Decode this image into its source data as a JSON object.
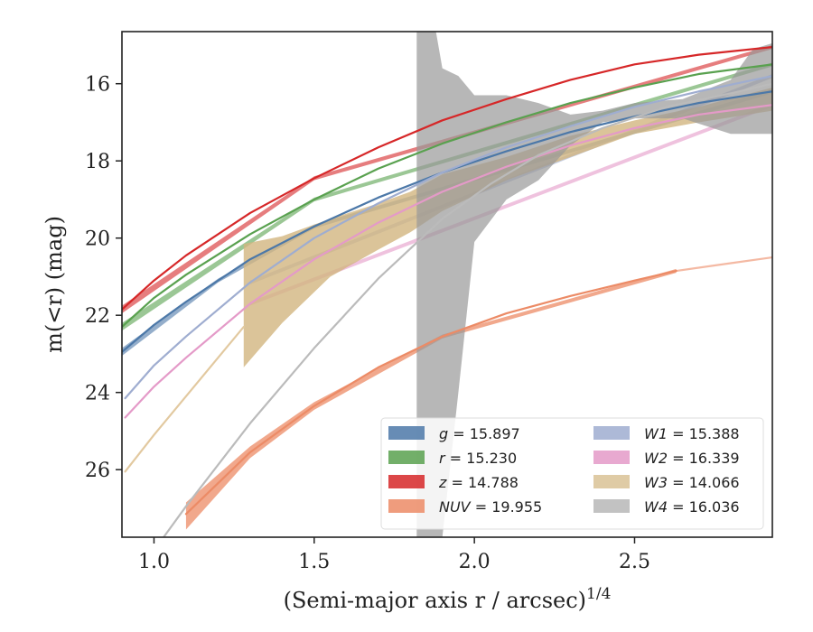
{
  "chart_data": {
    "type": "line",
    "xlabel": "(Semi-major axis r / arcsec)",
    "xlabel_var": "r",
    "xlabel_sup": "1/4",
    "ylabel": "m(<r) (mag)",
    "xlim": [
      0.9,
      2.93
    ],
    "ylim": [
      27.75,
      14.65
    ],
    "y_inverted": true,
    "xticks": [
      1.0,
      1.5,
      2.0,
      2.5
    ],
    "xtick_labels": [
      "1.0",
      "1.5",
      "2.0",
      "2.5"
    ],
    "yticks": [
      16,
      18,
      20,
      22,
      24,
      26
    ],
    "ytick_labels": [
      "16",
      "18",
      "20",
      "22",
      "24",
      "26"
    ],
    "grid": false,
    "legend": {
      "placement": "lower-right",
      "columns": 2
    },
    "series": [
      {
        "name": "g = 15.897",
        "var": "g",
        "value": "15.897",
        "color": "#4c78a8",
        "line": [
          [
            0.9,
            22.95
          ],
          [
            1.0,
            22.25
          ],
          [
            1.1,
            21.65
          ],
          [
            1.3,
            20.55
          ],
          [
            1.5,
            19.7
          ],
          [
            1.7,
            18.95
          ],
          [
            1.9,
            18.3
          ],
          [
            2.1,
            17.75
          ],
          [
            2.3,
            17.25
          ],
          [
            2.5,
            16.85
          ],
          [
            2.7,
            16.5
          ],
          [
            2.93,
            16.2
          ]
        ],
        "band": [
          [
            0.9,
            22.85,
            23.05
          ],
          [
            1.2,
            21.05,
            21.15
          ],
          [
            1.5,
            19.65,
            19.75
          ],
          [
            2.93,
            16.15,
            16.25
          ]
        ],
        "band_opacity": 0.6
      },
      {
        "name": "r = 15.230",
        "var": "r",
        "value": "15.230",
        "color": "#59a14f",
        "line": [
          [
            0.9,
            22.3
          ],
          [
            1.0,
            21.55
          ],
          [
            1.1,
            20.95
          ],
          [
            1.3,
            19.9
          ],
          [
            1.5,
            19.0
          ],
          [
            1.7,
            18.2
          ],
          [
            1.9,
            17.55
          ],
          [
            2.1,
            17.0
          ],
          [
            2.3,
            16.5
          ],
          [
            2.5,
            16.1
          ],
          [
            2.7,
            15.75
          ],
          [
            2.93,
            15.5
          ]
        ],
        "band": [
          [
            0.9,
            22.2,
            22.4
          ],
          [
            1.5,
            18.95,
            19.05
          ],
          [
            2.93,
            15.45,
            15.55
          ]
        ],
        "band_opacity": 0.6
      },
      {
        "name": "z = 14.788",
        "var": "z",
        "value": "14.788",
        "color": "#d62728",
        "line": [
          [
            0.9,
            21.85
          ],
          [
            1.0,
            21.1
          ],
          [
            1.1,
            20.45
          ],
          [
            1.3,
            19.35
          ],
          [
            1.5,
            18.45
          ],
          [
            1.7,
            17.65
          ],
          [
            1.9,
            16.95
          ],
          [
            2.1,
            16.4
          ],
          [
            2.3,
            15.9
          ],
          [
            2.5,
            15.5
          ],
          [
            2.7,
            15.25
          ],
          [
            2.93,
            15.05
          ]
        ],
        "band": [
          [
            0.9,
            21.75,
            21.95
          ],
          [
            1.5,
            18.4,
            18.5
          ],
          [
            2.93,
            15.0,
            15.1
          ]
        ],
        "band_opacity": 0.6
      },
      {
        "name": "NUV = 19.955",
        "var": "NUV",
        "value": "19.955",
        "color": "#ec8b66",
        "line": [
          [
            1.1,
            27.15
          ],
          [
            1.3,
            25.55
          ],
          [
            1.5,
            24.35
          ],
          [
            1.7,
            23.35
          ],
          [
            1.9,
            22.55
          ],
          [
            2.1,
            21.95
          ],
          [
            2.3,
            21.5
          ],
          [
            2.5,
            21.1
          ],
          [
            2.63,
            20.85
          ]
        ],
        "line_ext": [
          [
            2.63,
            20.85
          ],
          [
            2.8,
            20.65
          ],
          [
            2.93,
            20.5
          ]
        ],
        "band": [
          [
            1.1,
            26.85,
            27.55
          ],
          [
            1.3,
            25.4,
            25.7
          ],
          [
            1.5,
            24.25,
            24.45
          ],
          [
            1.9,
            22.5,
            22.6
          ],
          [
            2.63,
            20.8,
            20.9
          ]
        ],
        "band_opacity": 0.75
      },
      {
        "name": "W1 = 15.388",
        "var": "W1",
        "value": "15.388",
        "color": "#9fadd0",
        "line": [
          [
            0.91,
            24.15
          ],
          [
            1.0,
            23.3
          ],
          [
            1.1,
            22.55
          ],
          [
            1.3,
            21.15
          ],
          [
            1.5,
            20.0
          ],
          [
            1.7,
            19.1
          ],
          [
            1.9,
            18.3
          ],
          [
            2.1,
            17.65
          ],
          [
            2.3,
            17.1
          ],
          [
            2.5,
            16.6
          ],
          [
            2.7,
            16.2
          ],
          [
            2.93,
            15.8
          ]
        ],
        "band": [
          [
            1.3,
            21.1,
            21.2
          ],
          [
            2.93,
            15.75,
            15.85
          ]
        ],
        "band_opacity": 0.6
      },
      {
        "name": "W2 = 16.339",
        "var": "W2",
        "value": "16.339",
        "color": "#e49ac8",
        "line": [
          [
            0.91,
            24.65
          ],
          [
            1.0,
            23.85
          ],
          [
            1.1,
            23.1
          ],
          [
            1.3,
            21.7
          ],
          [
            1.5,
            20.55
          ],
          [
            1.7,
            19.6
          ],
          [
            1.9,
            18.8
          ],
          [
            2.1,
            18.15
          ],
          [
            2.3,
            17.6
          ],
          [
            2.5,
            17.15
          ],
          [
            2.7,
            16.8
          ],
          [
            2.93,
            16.55
          ]
        ],
        "band": [
          [
            1.3,
            21.65,
            21.75
          ],
          [
            2.93,
            16.5,
            16.6
          ]
        ],
        "band_opacity": 0.6
      },
      {
        "name": "W3 = 14.066",
        "var": "W3",
        "value": "14.066",
        "color": "#e2c9a0",
        "line": [
          [
            0.91,
            26.05
          ],
          [
            1.0,
            25.1
          ],
          [
            1.1,
            24.1
          ],
          [
            1.2,
            23.1
          ],
          [
            1.28,
            22.3
          ]
        ],
        "band": [
          [
            1.28,
            20.15,
            23.35
          ],
          [
            1.4,
            19.95,
            22.2
          ],
          [
            1.55,
            19.5,
            21.0
          ],
          [
            1.7,
            19.1,
            20.3
          ],
          [
            1.8,
            18.8,
            19.85
          ],
          [
            1.9,
            18.35,
            19.3
          ],
          [
            2.1,
            17.9,
            18.5
          ],
          [
            2.3,
            17.35,
            17.9
          ],
          [
            2.5,
            16.95,
            17.3
          ],
          [
            2.7,
            16.6,
            17.0
          ],
          [
            2.93,
            16.1,
            16.7
          ]
        ],
        "band_color": "#d2b57f",
        "band_opacity": 0.8
      },
      {
        "name": "W4 = 16.036",
        "var": "W4",
        "value": "16.036",
        "color": "#bbbbbb",
        "line": [
          [
            1.03,
            27.75
          ],
          [
            1.1,
            26.95
          ],
          [
            1.3,
            24.8
          ],
          [
            1.5,
            22.85
          ],
          [
            1.7,
            21.05
          ],
          [
            1.9,
            19.5
          ],
          [
            2.05,
            18.6
          ],
          [
            2.2,
            17.85
          ],
          [
            2.4,
            17.15
          ],
          [
            2.6,
            16.6
          ],
          [
            2.8,
            16.25
          ],
          [
            2.93,
            16.0
          ]
        ],
        "band": [
          [
            1.82,
            14.65,
            27.75
          ],
          [
            1.88,
            14.65,
            27.75
          ],
          [
            1.9,
            15.6,
            27.75
          ],
          [
            1.95,
            15.8,
            24.0
          ],
          [
            2.0,
            16.3,
            20.1
          ],
          [
            2.1,
            16.3,
            19.0
          ],
          [
            2.2,
            16.5,
            18.5
          ],
          [
            2.3,
            16.8,
            17.6
          ],
          [
            2.4,
            16.7,
            17.0
          ],
          [
            2.5,
            16.5,
            16.9
          ],
          [
            2.65,
            16.4,
            16.9
          ],
          [
            2.8,
            15.9,
            17.3
          ],
          [
            2.87,
            15.1,
            17.3
          ],
          [
            2.93,
            14.95,
            17.3
          ]
        ],
        "band_color": "#999999",
        "band_opacity": 0.7
      }
    ]
  }
}
